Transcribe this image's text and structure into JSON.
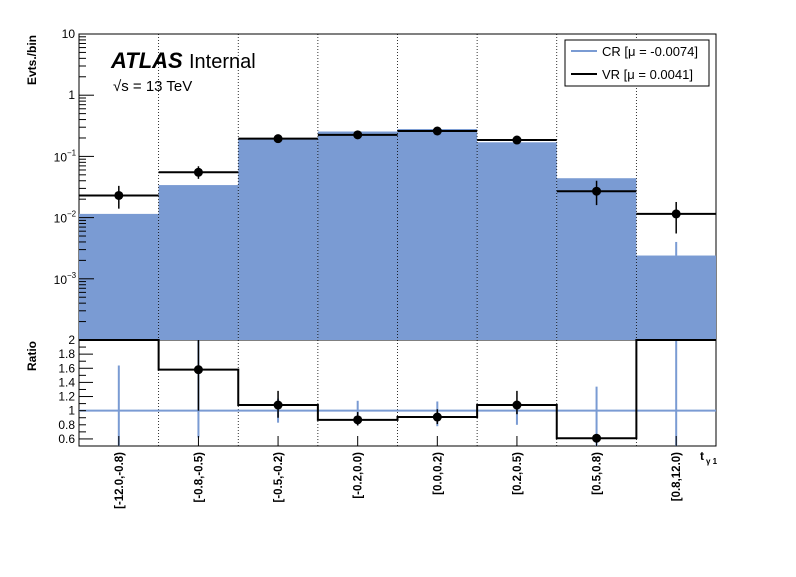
{
  "chart_data": {
    "type": "bar",
    "atlas_label": "ATLAS",
    "atlas_status": "Internal",
    "energy_label": "√s = 13 TeV",
    "ylabel": "Evts./bin",
    "ratio_ylabel": "Ratio",
    "xlabel_main": "t",
    "xlabel_sub": "γ 1",
    "ylim": [
      0.0001,
      10
    ],
    "yscale": "log",
    "y_ticks": [
      {
        "value": 10,
        "label": "10"
      },
      {
        "value": 1,
        "label": "1"
      },
      {
        "value": 0.1,
        "base": "10",
        "exp": "−1"
      },
      {
        "value": 0.01,
        "base": "10",
        "exp": "−2"
      },
      {
        "value": 0.001,
        "base": "10",
        "exp": "−3"
      }
    ],
    "ratio_ylim": [
      0.5,
      2.0
    ],
    "ratio_ticks": [
      "0.6",
      "0.8",
      "1",
      "1.2",
      "1.4",
      "1.6",
      "1.8",
      "2"
    ],
    "categories": [
      "[-12.0,-0.8)",
      "[-0.8,-0.5)",
      "[-0.5,-0.2)",
      "[-0.2,0.0)",
      "[0.0,0.2)",
      "[0.2,0.5)",
      "[0.5,0.8)",
      "[0.8,12.0)"
    ],
    "series": [
      {
        "name": "CR [μ = -0.0074]",
        "color": "#7a9bd3",
        "values": [
          0.0115,
          0.034,
          0.19,
          0.255,
          0.28,
          0.17,
          0.044,
          0.0024
        ],
        "error_high": [
          null,
          null,
          null,
          null,
          null,
          null,
          null,
          0.004
        ]
      },
      {
        "name": "VR [μ = 0.0041]",
        "color": "#000000",
        "values": [
          0.023,
          0.055,
          0.195,
          0.225,
          0.26,
          0.185,
          0.027,
          0.0115
        ],
        "error_low": [
          0.014,
          0.043,
          0.175,
          0.2,
          0.235,
          0.165,
          0.016,
          0.0055
        ],
        "error_high": [
          0.033,
          0.069,
          0.215,
          0.25,
          0.285,
          0.205,
          0.04,
          0.018
        ]
      }
    ],
    "ratio": {
      "values": [
        2.0,
        1.58,
        1.08,
        0.87,
        0.91,
        1.08,
        0.61,
        2.0
      ],
      "show_marker": [
        false,
        true,
        true,
        true,
        true,
        true,
        true,
        false
      ],
      "black_error": [
        null,
        [
          1.0,
          2.0
        ],
        [
          0.9,
          1.28
        ],
        [
          0.79,
          0.98
        ],
        [
          0.81,
          1.02
        ],
        [
          0.95,
          1.28
        ],
        null,
        null
      ],
      "blue_error": [
        [
          0.5,
          1.64
        ],
        [
          0.62,
          2.0
        ],
        [
          0.83,
          1.17
        ],
        [
          0.8,
          1.14
        ],
        [
          0.78,
          1.13
        ],
        [
          0.8,
          1.12
        ],
        [
          0.5,
          1.34
        ],
        [
          0.5,
          2.0
        ]
      ],
      "reference_line": 1
    },
    "grid": "vertical dotted at bin edges",
    "legend_position": "top-right"
  }
}
